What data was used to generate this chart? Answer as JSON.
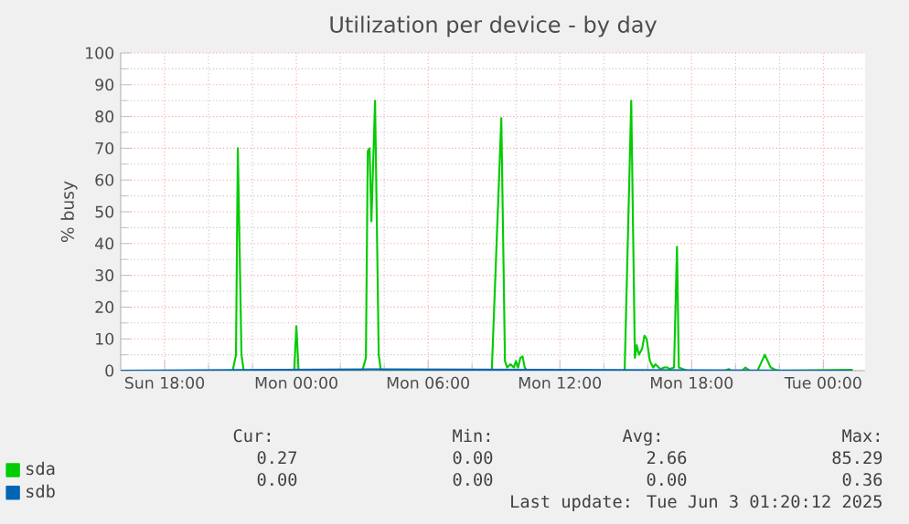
{
  "chart_data": {
    "type": "line",
    "title": "Utilization per device - by day",
    "ylabel": "% busy",
    "xlim": [
      "2025-06-01T16:00",
      "2025-06-03T01:54"
    ],
    "ylim": [
      0,
      100
    ],
    "xticks": [
      {
        "value": "2025-06-01T18:00",
        "label": "Sun 18:00"
      },
      {
        "value": "2025-06-02T00:00",
        "label": "Mon 00:00"
      },
      {
        "value": "2025-06-02T06:00",
        "label": "Mon 06:00"
      },
      {
        "value": "2025-06-02T12:00",
        "label": "Mon 12:00"
      },
      {
        "value": "2025-06-02T18:00",
        "label": "Mon 18:00"
      },
      {
        "value": "2025-06-03T00:00",
        "label": "Tue 00:00"
      }
    ],
    "yticks": [
      0,
      10,
      20,
      30,
      40,
      50,
      60,
      70,
      80,
      90,
      100
    ],
    "grid": true,
    "legend": "bottom",
    "series": [
      {
        "name": "sda",
        "color": "#00cc00",
        "x": [
          "2025-06-01T16:00",
          "2025-06-01T21:06",
          "2025-06-01T21:15",
          "2025-06-01T21:20",
          "2025-06-01T21:30",
          "2025-06-01T21:36",
          "2025-06-01T23:54",
          "2025-06-02T00:00",
          "2025-06-02T00:06",
          "2025-06-02T03:00",
          "2025-06-02T03:10",
          "2025-06-02T03:15",
          "2025-06-02T03:20",
          "2025-06-02T03:25",
          "2025-06-02T03:35",
          "2025-06-02T03:45",
          "2025-06-02T03:51",
          "2025-06-02T08:54",
          "2025-06-02T09:20",
          "2025-06-02T09:30",
          "2025-06-02T09:36",
          "2025-06-02T09:45",
          "2025-06-02T09:54",
          "2025-06-02T10:00",
          "2025-06-02T10:06",
          "2025-06-02T10:12",
          "2025-06-02T10:18",
          "2025-06-02T10:24",
          "2025-06-02T10:30",
          "2025-06-02T14:57",
          "2025-06-02T15:15",
          "2025-06-02T15:25",
          "2025-06-02T15:30",
          "2025-06-02T15:36",
          "2025-06-02T15:45",
          "2025-06-02T15:51",
          "2025-06-02T15:57",
          "2025-06-02T16:06",
          "2025-06-02T16:15",
          "2025-06-02T16:21",
          "2025-06-02T16:30",
          "2025-06-02T16:36",
          "2025-06-02T16:45",
          "2025-06-02T16:54",
          "2025-06-02T17:00",
          "2025-06-02T17:12",
          "2025-06-02T17:20",
          "2025-06-02T17:25",
          "2025-06-02T17:36",
          "2025-06-02T17:48",
          "2025-06-02T19:30",
          "2025-06-02T19:42",
          "2025-06-02T19:48",
          "2025-06-02T20:18",
          "2025-06-02T20:27",
          "2025-06-02T20:33",
          "2025-06-02T20:39",
          "2025-06-02T21:00",
          "2025-06-02T21:20",
          "2025-06-02T21:36",
          "2025-06-02T21:48",
          "2025-06-02T22:00",
          "2025-06-03T01:20"
        ],
        "values": [
          0,
          0,
          5,
          70,
          5,
          0,
          0,
          14,
          0,
          0,
          4,
          69,
          70,
          47,
          85,
          5,
          0,
          0,
          79.5,
          3,
          1,
          2,
          1,
          3,
          1,
          4,
          4.5,
          1,
          0,
          0,
          85,
          4,
          8,
          5,
          7,
          11,
          10,
          3,
          1,
          2,
          1,
          0.5,
          1,
          1,
          0.5,
          1,
          39,
          1,
          0.5,
          0,
          0,
          0.5,
          0,
          0,
          1,
          0.5,
          0,
          0,
          5,
          1,
          0.3,
          0,
          0.3
        ]
      },
      {
        "name": "sdb",
        "color": "#0066b3",
        "x": [
          "2025-06-01T16:00",
          "2025-06-02T03:35",
          "2025-06-03T01:20"
        ],
        "values": [
          0,
          0.4,
          0
        ]
      }
    ],
    "annotations": [
      "Cur:",
      "Min:",
      "Avg:",
      "Max:",
      "0.27",
      "0.00",
      "2.66",
      "85.29",
      "0.00",
      "0.00",
      "0.00",
      "0.36",
      "Last update: Tue Jun  3 01:20:12 2025"
    ]
  }
}
